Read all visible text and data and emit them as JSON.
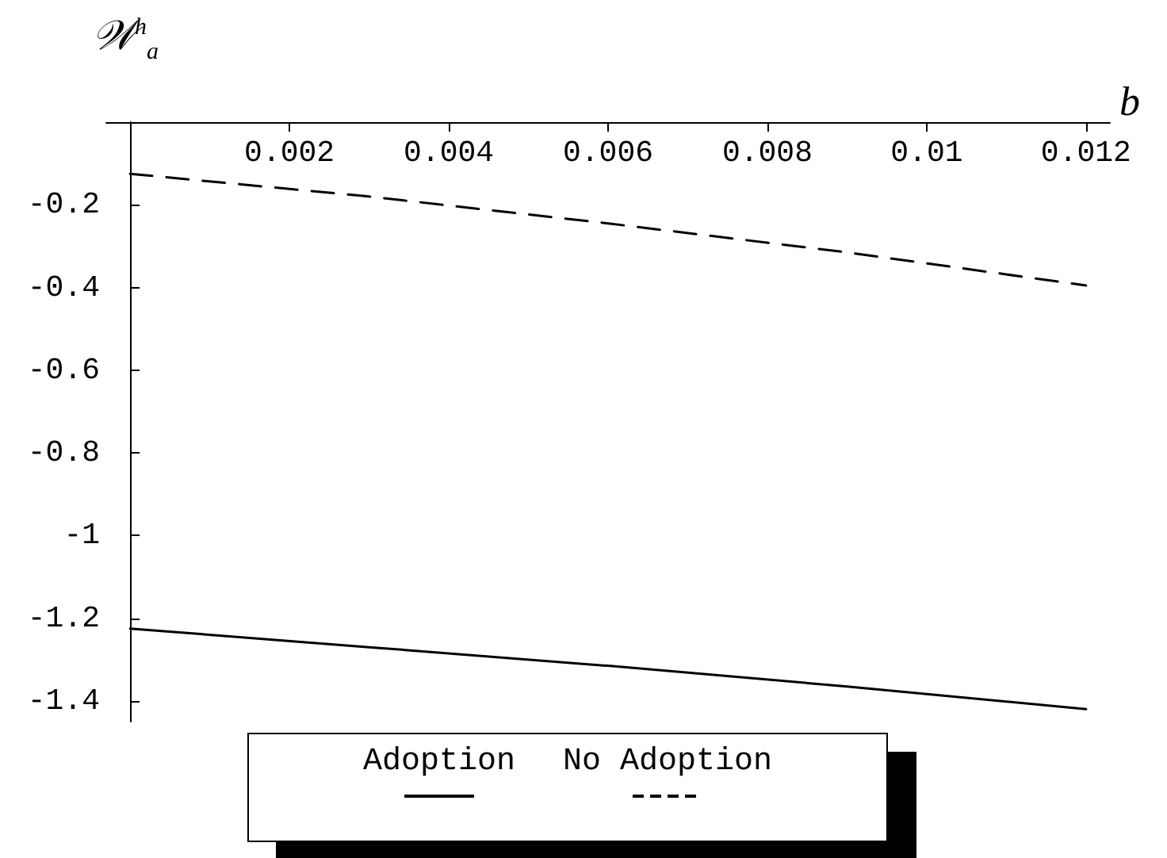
{
  "chart_data": {
    "type": "line",
    "xlabel": "b",
    "ylabel": "𝒲$^{h}$$_{a}$",
    "xlim": [
      -0.0003,
      0.0123
    ],
    "ylim": [
      -1.45,
      0
    ],
    "xticks": [
      0.002,
      0.004,
      0.006,
      0.008,
      0.01,
      0.012
    ],
    "yticks": [
      -0.2,
      -0.4,
      -0.6,
      -0.8,
      -1,
      -1.2,
      -1.4
    ],
    "grid": false,
    "legend": "bottom",
    "marker": "none",
    "series": [
      {
        "name": "Adoption",
        "color": "#000000",
        "line_style": "solid",
        "x": [
          0,
          0.003,
          0.006,
          0.009,
          0.012
        ],
        "values": [
          -1.225,
          -1.27,
          -1.315,
          -1.365,
          -1.42
        ]
      },
      {
        "name": "No Adoption",
        "color": "#000000",
        "line_style": "dashed",
        "x": [
          0,
          0.003,
          0.006,
          0.009,
          0.012
        ],
        "values": [
          -0.125,
          -0.18,
          -0.245,
          -0.315,
          -0.395
        ]
      }
    ]
  }
}
